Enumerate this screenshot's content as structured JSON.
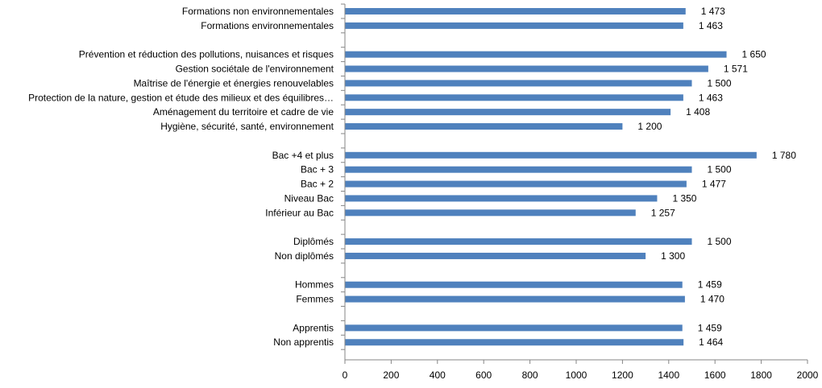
{
  "chart_data": {
    "type": "bar",
    "orientation": "horizontal",
    "categories": [
      "Formations non environnementales",
      "Formations environnementales",
      "",
      "Prévention et réduction des pollutions, nuisances et risques",
      "Gestion sociétale de l'environnement",
      "Maîtrise de l'énergie et énergies renouvelables",
      "Protection de la nature, gestion et étude des milieux et des équilibres…",
      "Aménagement du territoire et cadre de vie",
      "Hygiène, sécurité, santé, environnement",
      "",
      "Bac +4 et plus",
      "Bac + 3",
      "Bac + 2",
      "Niveau Bac",
      "Inférieur au Bac",
      "",
      "Diplômés",
      "Non diplômés",
      "",
      "Hommes",
      "Femmes",
      "",
      "Apprentis",
      "Non apprentis"
    ],
    "values": [
      1473,
      1463,
      null,
      1650,
      1571,
      1500,
      1463,
      1408,
      1200,
      null,
      1780,
      1500,
      1477,
      1350,
      1257,
      null,
      1500,
      1300,
      null,
      1459,
      1470,
      null,
      1459,
      1464
    ],
    "value_labels": [
      "1 473",
      "1 463",
      "",
      "1 650",
      "1 571",
      "1 500",
      "1 463",
      "1 408",
      "1 200",
      "",
      "1 780",
      "1 500",
      "1 477",
      "1 350",
      "1 257",
      "",
      "1 500",
      "1 300",
      "",
      "1 459",
      "1 470",
      "",
      "1 459",
      "1 464"
    ],
    "xlim": [
      0,
      2000
    ],
    "xticks": [
      0,
      200,
      400,
      600,
      800,
      1000,
      1200,
      1400,
      1600,
      1800,
      2000
    ],
    "xtick_labels": [
      "0",
      "200",
      "400",
      "600",
      "800",
      "1000",
      "1200",
      "1400",
      "1600",
      "1800",
      "2000"
    ],
    "grid": false,
    "bar_color": "#4F81BD",
    "title": "",
    "xlabel": "",
    "ylabel": ""
  }
}
